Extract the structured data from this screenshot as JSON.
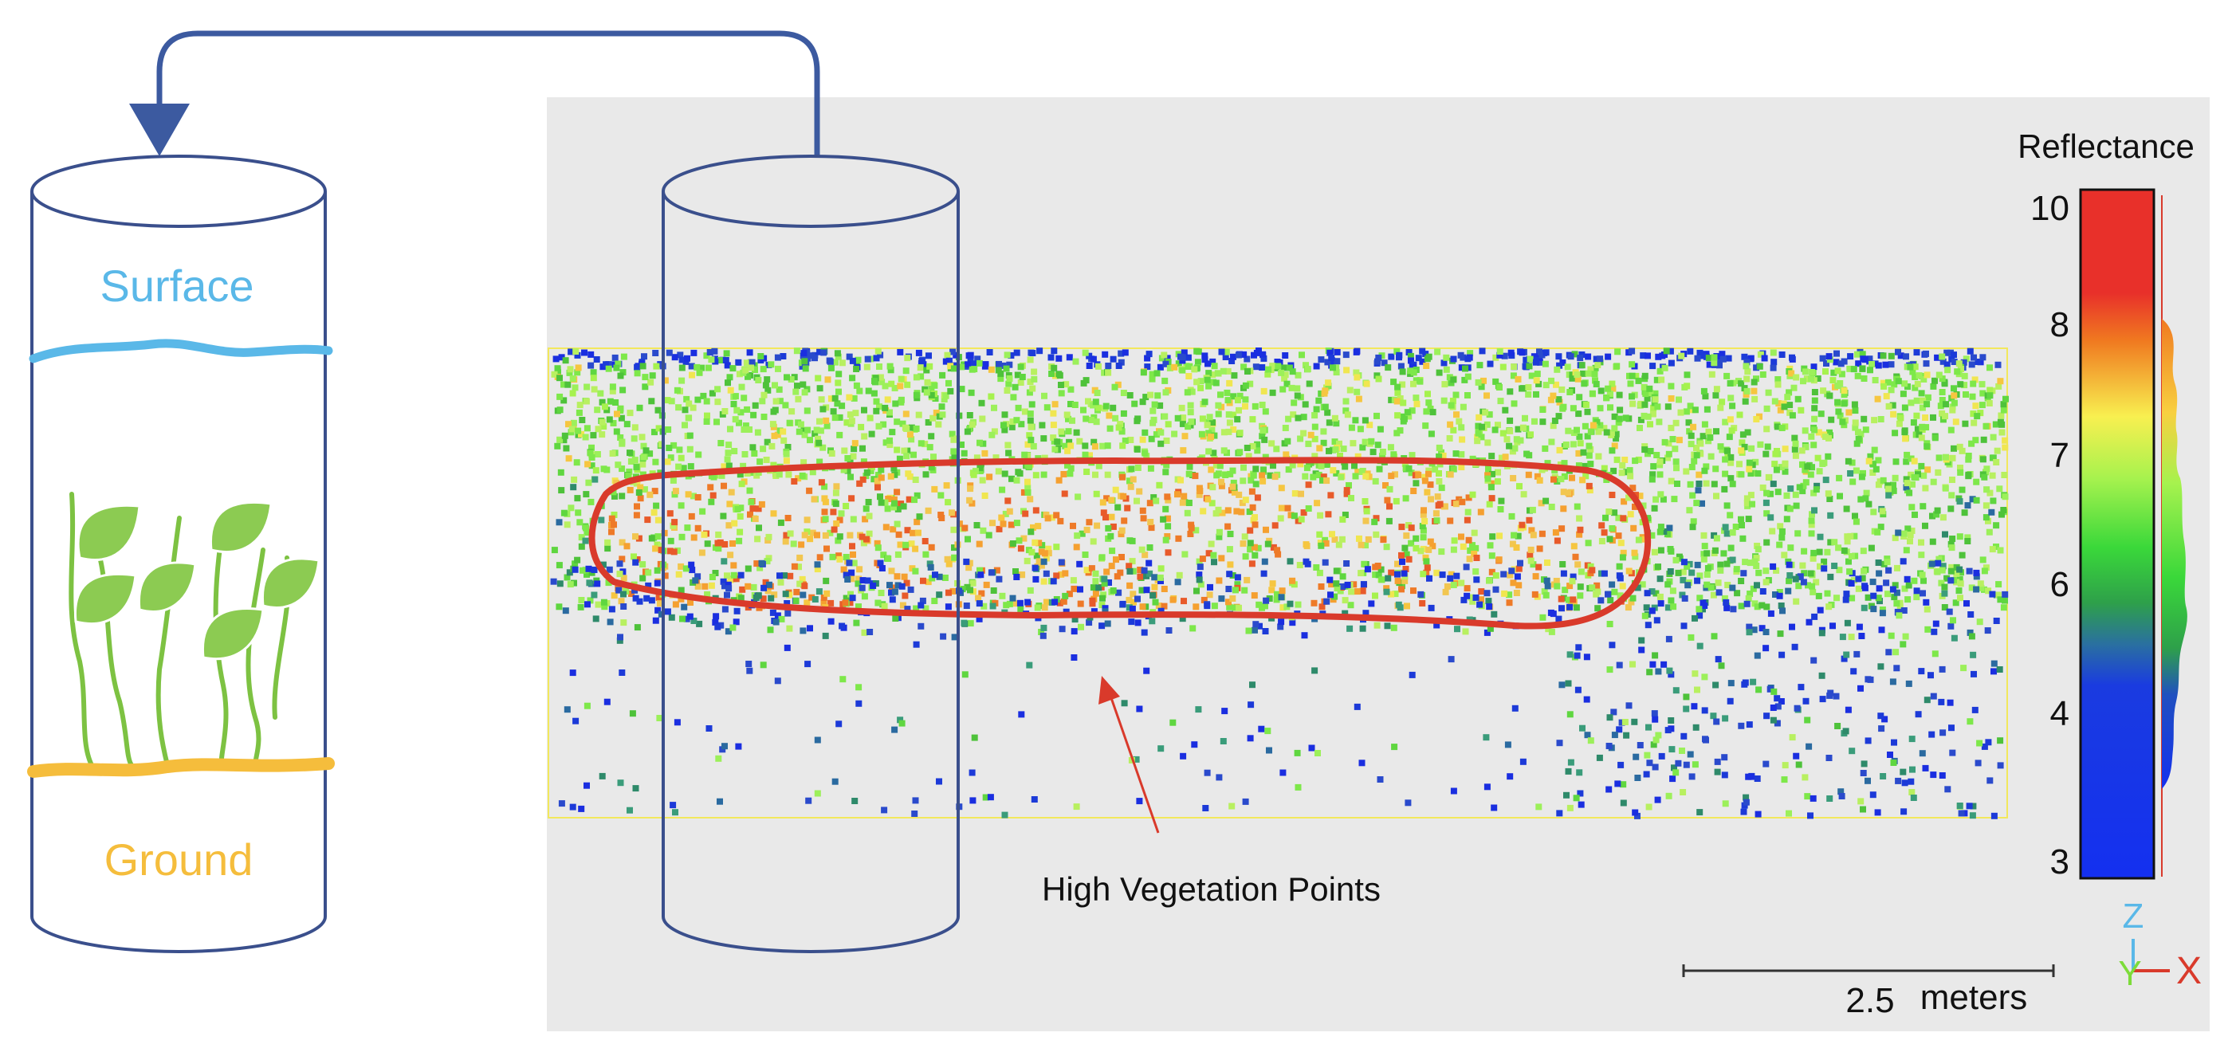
{
  "left_cylinder": {
    "surface_label": "Surface",
    "ground_label": "Ground"
  },
  "point_cloud": {
    "annotation": "High Vegetation Points"
  },
  "colorbar": {
    "title": "Reflectance",
    "ticks": [
      "10",
      "8",
      "7",
      "6",
      "4",
      "3"
    ]
  },
  "scale_bar": {
    "value": "2.5",
    "unit": "meters"
  },
  "axes_gizmo": {
    "z_label": "Z",
    "y_label": "Y",
    "x_label": "X"
  },
  "colors": {
    "outline": "#3a4f8c",
    "arrow": "#3c5aa0",
    "surface": "#5ab8e8",
    "ground": "#f5bd3c",
    "plant": "#7dc242",
    "annotation_loop": "#d93a2b",
    "panel_bg": "#e9e9e9"
  }
}
